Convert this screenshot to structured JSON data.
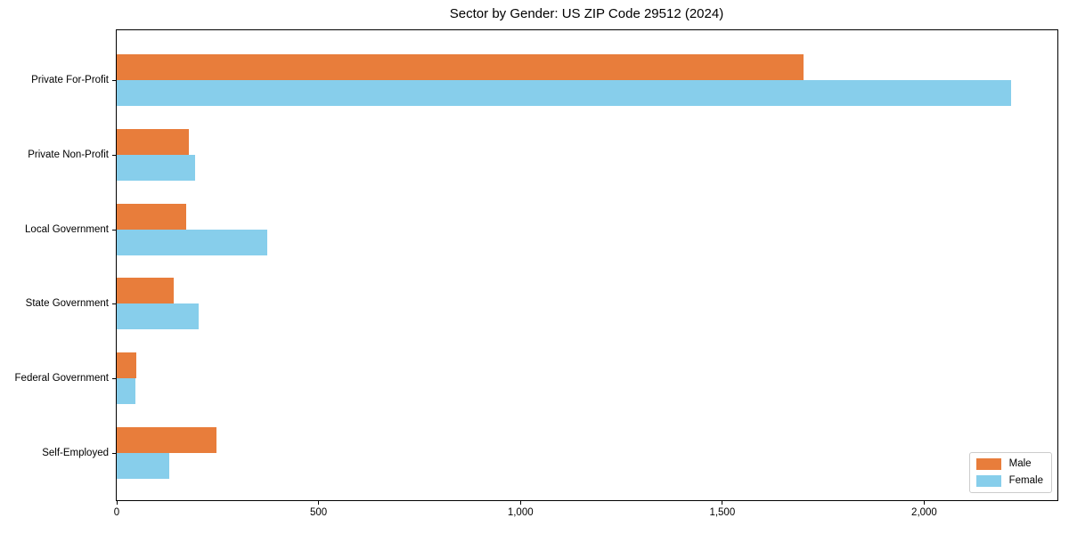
{
  "chart_data": {
    "type": "bar",
    "orientation": "horizontal",
    "title": "Sector by Gender: US ZIP Code 29512 (2024)",
    "categories": [
      "Private For-Profit",
      "Private Non-Profit",
      "Local Government",
      "State Government",
      "Federal Government",
      "Self-Employed"
    ],
    "series": [
      {
        "name": "Male",
        "color": "#E87D3B",
        "values": [
          1700,
          178,
          173,
          142,
          49,
          247
        ]
      },
      {
        "name": "Female",
        "color": "#87CEEB",
        "values": [
          2215,
          195,
          373,
          203,
          46,
          131
        ]
      }
    ],
    "xlim": [
      0,
      2330
    ],
    "xticks": [
      0,
      500,
      1000,
      1500,
      2000
    ],
    "xtick_labels": [
      "0",
      "500",
      "1,000",
      "1,500",
      "2,000"
    ],
    "xlabel": "",
    "ylabel": "",
    "grid": false,
    "legend": {
      "position": "lower right",
      "entries": [
        "Male",
        "Female"
      ]
    }
  }
}
